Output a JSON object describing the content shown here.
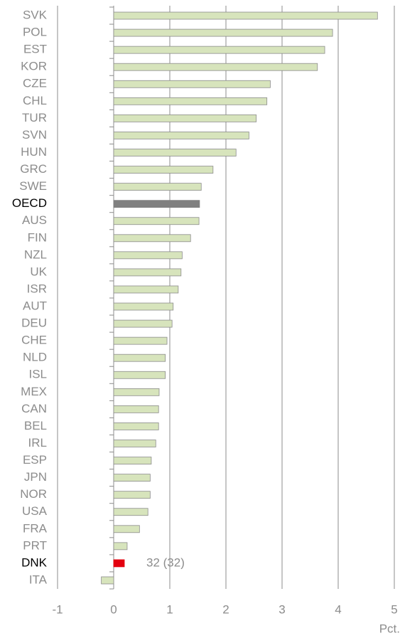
{
  "chart_data": {
    "type": "bar",
    "orientation": "horizontal",
    "categories": [
      "SVK",
      "POL",
      "EST",
      "KOR",
      "CZE",
      "CHL",
      "TUR",
      "SVN",
      "HUN",
      "GRC",
      "SWE",
      "OECD",
      "AUS",
      "FIN",
      "NZL",
      "UK",
      "ISR",
      "AUT",
      "DEU",
      "CHE",
      "NLD",
      "ISL",
      "MEX",
      "CAN",
      "BEL",
      "IRL",
      "ESP",
      "JPN",
      "NOR",
      "USA",
      "FRA",
      "PRT",
      "DNK",
      "ITA"
    ],
    "values": [
      4.7,
      3.9,
      3.76,
      3.63,
      2.79,
      2.73,
      2.54,
      2.41,
      2.18,
      1.77,
      1.56,
      1.53,
      1.52,
      1.37,
      1.22,
      1.2,
      1.15,
      1.06,
      1.04,
      0.95,
      0.92,
      0.92,
      0.81,
      0.8,
      0.8,
      0.75,
      0.67,
      0.65,
      0.65,
      0.61,
      0.46,
      0.24,
      0.19,
      -0.22
    ],
    "color": "#d7e4bc",
    "bar_colors": [
      "#d7e4bc",
      "#d7e4bc",
      "#d7e4bc",
      "#d7e4bc",
      "#d7e4bc",
      "#d7e4bc",
      "#d7e4bc",
      "#d7e4bc",
      "#d7e4bc",
      "#d7e4bc",
      "#d7e4bc",
      "#808080",
      "#d7e4bc",
      "#d7e4bc",
      "#d7e4bc",
      "#d7e4bc",
      "#d7e4bc",
      "#d7e4bc",
      "#d7e4bc",
      "#d7e4bc",
      "#d7e4bc",
      "#d7e4bc",
      "#d7e4bc",
      "#d7e4bc",
      "#d7e4bc",
      "#d7e4bc",
      "#d7e4bc",
      "#d7e4bc",
      "#d7e4bc",
      "#d7e4bc",
      "#d7e4bc",
      "#d7e4bc",
      "#e3000f",
      "#d7e4bc"
    ],
    "annotation": "32 (32)",
    "xlabel": "Pct.",
    "xlim": [
      -1,
      5
    ],
    "xticks": [
      -1,
      0,
      1,
      2,
      3,
      4,
      5
    ],
    "grid": true
  }
}
